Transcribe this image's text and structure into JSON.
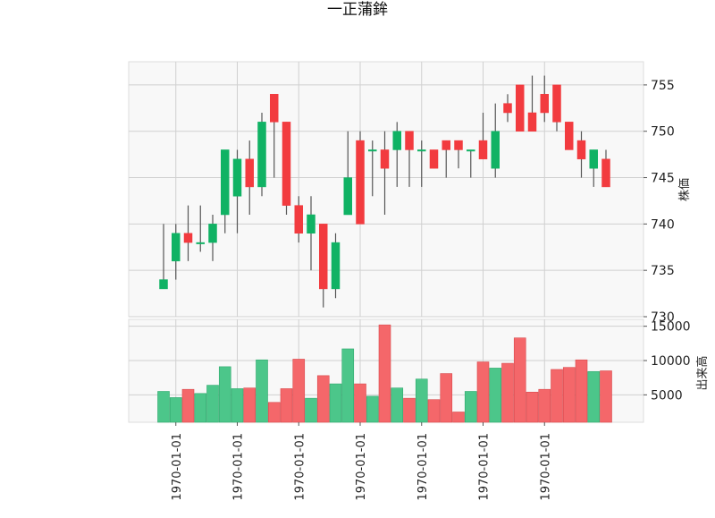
{
  "chart_data": {
    "type": "candlestick",
    "title": "一正蒲鉾",
    "price_axis": {
      "label": "株価",
      "ylim": [
        730,
        757.5
      ],
      "ticks": [
        730,
        735,
        740,
        745,
        750,
        755
      ]
    },
    "volume_axis": {
      "label": "出来高",
      "ylim": [
        1000,
        16000
      ],
      "ticks": [
        5000,
        10000,
        15000
      ]
    },
    "x_tick_labels": [
      "1970-01-01",
      "1970-01-01",
      "1970-01-01",
      "1970-01-01",
      "1970-01-01",
      "1970-01-01",
      "1970-01-01"
    ],
    "x_tick_positions": [
      1,
      6,
      11,
      16,
      21,
      26,
      31
    ],
    "colors": {
      "up": "#10b264",
      "down": "#f23b3f",
      "up_volume": "#4cc68a",
      "down_volume": "#f4676a",
      "grid": "#d0d0d0",
      "plot_bg": "#f8f8f8"
    },
    "grid": true,
    "candles": [
      {
        "open": 733,
        "high": 740,
        "low": 733,
        "close": 734
      },
      {
        "open": 736,
        "high": 740,
        "low": 734,
        "close": 739
      },
      {
        "open": 739,
        "high": 742,
        "low": 736,
        "close": 738
      },
      {
        "open": 738,
        "high": 742,
        "low": 737,
        "close": 738
      },
      {
        "open": 738,
        "high": 741,
        "low": 736,
        "close": 740
      },
      {
        "open": 741,
        "high": 748,
        "low": 739,
        "close": 748
      },
      {
        "open": 743,
        "high": 748,
        "low": 739,
        "close": 747
      },
      {
        "open": 747,
        "high": 749,
        "low": 741,
        "close": 744
      },
      {
        "open": 744,
        "high": 752,
        "low": 743,
        "close": 751
      },
      {
        "open": 754,
        "high": 754,
        "low": 745,
        "close": 751
      },
      {
        "open": 751,
        "high": 751,
        "low": 741,
        "close": 742
      },
      {
        "open": 742,
        "high": 743,
        "low": 738,
        "close": 739
      },
      {
        "open": 739,
        "high": 743,
        "low": 735,
        "close": 741
      },
      {
        "open": 740,
        "high": 740,
        "low": 731,
        "close": 733
      },
      {
        "open": 733,
        "high": 739,
        "low": 732,
        "close": 738
      },
      {
        "open": 741,
        "high": 750,
        "low": 741,
        "close": 745
      },
      {
        "open": 749,
        "high": 750,
        "low": 740,
        "close": 740
      },
      {
        "open": 748,
        "high": 749,
        "low": 743,
        "close": 748
      },
      {
        "open": 748,
        "high": 750,
        "low": 741,
        "close": 746
      },
      {
        "open": 748,
        "high": 751,
        "low": 744,
        "close": 750
      },
      {
        "open": 750,
        "high": 750,
        "low": 744,
        "close": 748
      },
      {
        "open": 748,
        "high": 749,
        "low": 744,
        "close": 748
      },
      {
        "open": 748,
        "high": 748,
        "low": 746,
        "close": 746
      },
      {
        "open": 749,
        "high": 749,
        "low": 745,
        "close": 748
      },
      {
        "open": 749,
        "high": 749,
        "low": 746,
        "close": 748
      },
      {
        "open": 748,
        "high": 748,
        "low": 745,
        "close": 748
      },
      {
        "open": 749,
        "high": 752,
        "low": 747,
        "close": 747
      },
      {
        "open": 746,
        "high": 753,
        "low": 745,
        "close": 750
      },
      {
        "open": 753,
        "high": 754,
        "low": 751,
        "close": 752
      },
      {
        "open": 755,
        "high": 755,
        "low": 750,
        "close": 750
      },
      {
        "open": 752,
        "high": 756,
        "low": 750,
        "close": 750
      },
      {
        "open": 754,
        "high": 756,
        "low": 751,
        "close": 752
      },
      {
        "open": 755,
        "high": 755,
        "low": 750,
        "close": 751
      },
      {
        "open": 751,
        "high": 751,
        "low": 748,
        "close": 748
      },
      {
        "open": 749,
        "high": 750,
        "low": 745,
        "close": 747
      },
      {
        "open": 746,
        "high": 748,
        "low": 744,
        "close": 748
      },
      {
        "open": 747,
        "high": 748,
        "low": 744,
        "close": 744
      }
    ],
    "volumes": [
      5500,
      4600,
      5800,
      5200,
      6400,
      9100,
      5900,
      6000,
      10100,
      3900,
      5900,
      10200,
      4500,
      7800,
      6600,
      11700,
      6600,
      4800,
      15200,
      6000,
      4500,
      7300,
      4300,
      8100,
      2500,
      5500,
      9800,
      8900,
      9600,
      13300,
      5400,
      5800,
      8700,
      9000,
      10100,
      8400,
      8500
    ]
  }
}
